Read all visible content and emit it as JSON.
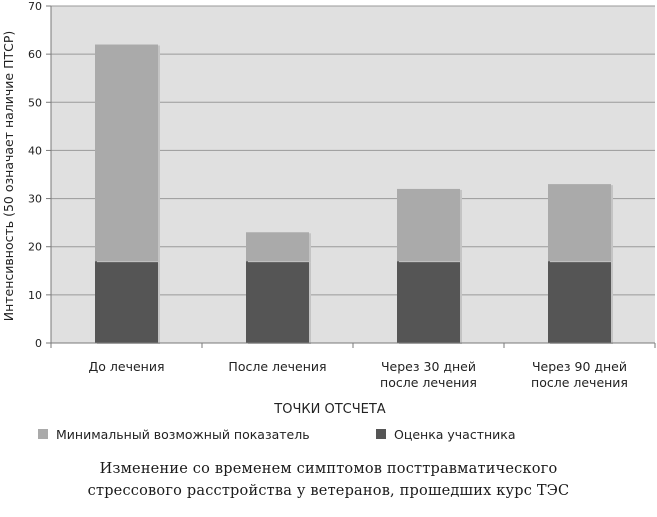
{
  "chart_data": {
    "type": "bar",
    "stacked": true,
    "categories": [
      "До лечения",
      "После лечения",
      "Через 30 дней\nпосле лечения",
      "Через 90 дней\nпосле лечения"
    ],
    "series": [
      {
        "name": "Оценка участника",
        "values": [
          17,
          17,
          17,
          17
        ],
        "color": "#555555"
      },
      {
        "name": "Минимальный возможный показатель",
        "values": [
          45,
          6,
          15,
          16
        ],
        "color": "#aaaaaa"
      }
    ],
    "xlabel": "ТОЧКИ ОТСЧЕТА",
    "ylabel": "Интенсивность (50 означает наличие ПТСР)",
    "ylim": [
      0,
      70
    ],
    "yticks": [
      0,
      10,
      20,
      30,
      40,
      50,
      60,
      70
    ],
    "grid": true,
    "plot_background": "#e0e0e0",
    "legend_placement": "bottom",
    "legend_order": [
      "Минимальный возможный показатель",
      "Оценка участника"
    ]
  },
  "caption": {
    "line1": "Изменение со временем симптомов посттравматического",
    "line2": "стрессового расстройства у ветеранов, прошедших курс ТЭС"
  }
}
